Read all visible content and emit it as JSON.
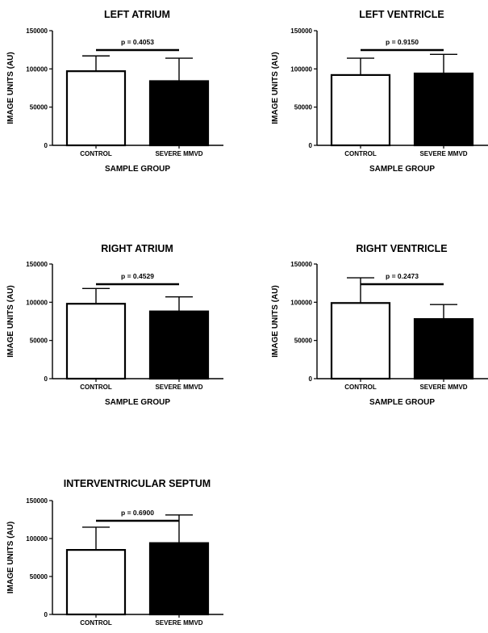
{
  "chart_data": [
    {
      "type": "bar",
      "title": "LEFT ATRIUM",
      "xlabel": "SAMPLE GROUP",
      "ylabel": "IMAGE UNITS (AU)",
      "categories": [
        "CONTROL",
        "SEVERE MMVD"
      ],
      "values": [
        97000,
        84000
      ],
      "errors": [
        20000,
        30000
      ],
      "bar_fills": [
        "#ffffff",
        "#000000"
      ],
      "ylim": [
        0,
        150000
      ],
      "yticks": [
        "0",
        "50000",
        "100000",
        "150000"
      ],
      "annotation": "p = 0.4053"
    },
    {
      "type": "bar",
      "title": "LEFT VENTRICLE",
      "xlabel": "SAMPLE GROUP",
      "ylabel": "IMAGE UNITS (AU)",
      "categories": [
        "CONTROL",
        "SEVERE MMVD"
      ],
      "values": [
        92000,
        94000
      ],
      "errors": [
        22000,
        25000
      ],
      "bar_fills": [
        "#ffffff",
        "#000000"
      ],
      "ylim": [
        0,
        150000
      ],
      "yticks": [
        "0",
        "50000",
        "100000",
        "150000"
      ],
      "annotation": "p = 0.9150"
    },
    {
      "type": "bar",
      "title": "RIGHT ATRIUM",
      "xlabel": "SAMPLE GROUP",
      "ylabel": "IMAGE UNITS (AU)",
      "categories": [
        "CONTROL",
        "SEVERE MMVD"
      ],
      "values": [
        98000,
        88000
      ],
      "errors": [
        20000,
        19000
      ],
      "bar_fills": [
        "#ffffff",
        "#000000"
      ],
      "ylim": [
        0,
        150000
      ],
      "yticks": [
        "0",
        "50000",
        "100000",
        "150000"
      ],
      "annotation": "p = 0.4529"
    },
    {
      "type": "bar",
      "title": "RIGHT VENTRICLE",
      "xlabel": "SAMPLE GROUP",
      "ylabel": "IMAGE UNITS (AU)",
      "categories": [
        "CONTROL",
        "SEVERE MMVD"
      ],
      "values": [
        99000,
        78000
      ],
      "errors": [
        33000,
        19000
      ],
      "bar_fills": [
        "#ffffff",
        "#000000"
      ],
      "ylim": [
        0,
        150000
      ],
      "yticks": [
        "0",
        "50000",
        "100000",
        "150000"
      ],
      "annotation": "p = 0.2473"
    },
    {
      "type": "bar",
      "title": "INTERVENTRICULAR SEPTUM",
      "xlabel": "",
      "ylabel": "IMAGE UNITS (AU)",
      "categories": [
        "CONTROL",
        "SEVERE MMVD"
      ],
      "values": [
        85000,
        94000
      ],
      "errors": [
        30000,
        37000
      ],
      "bar_fills": [
        "#ffffff",
        "#000000"
      ],
      "ylim": [
        0,
        150000
      ],
      "yticks": [
        "0",
        "50000",
        "100000",
        "150000"
      ],
      "annotation": "p = 0.6900"
    }
  ]
}
